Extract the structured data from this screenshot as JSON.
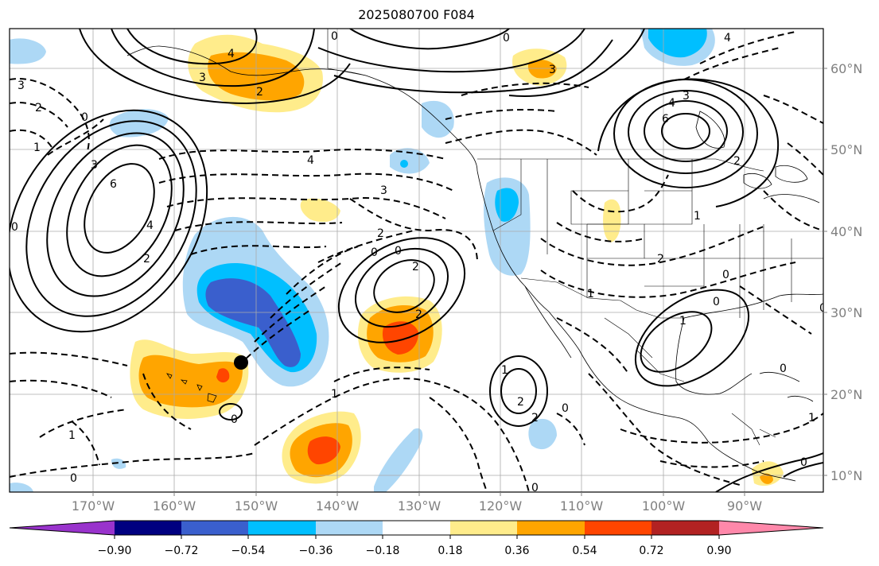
{
  "title": "2025080700 F084",
  "map": {
    "lon_ticks": [
      "170°W",
      "160°W",
      "150°W",
      "140°W",
      "130°W",
      "120°W",
      "110°W",
      "100°W",
      "90°W"
    ],
    "lat_ticks": [
      "60°N",
      "50°N",
      "40°N",
      "30°N",
      "20°N",
      "10°N"
    ],
    "marker": "black-dot"
  },
  "colorbar": {
    "labels": [
      "−0.90",
      "−0.72",
      "−0.54",
      "−0.36",
      "−0.18",
      "0.18",
      "0.36",
      "0.54",
      "0.72",
      "0.90"
    ],
    "colors": [
      "#9933cc",
      "#000080",
      "#3a5fcd",
      "#00bfff",
      "#add8f5",
      "#ffffff",
      "#ffec8b",
      "#ffa500",
      "#ff4500",
      "#b22222",
      "#ff88aa"
    ]
  },
  "contour_labels": [
    "0",
    "4",
    "3",
    "2",
    "3",
    "0",
    "4",
    "6",
    "4",
    "3",
    "2",
    "3",
    "2",
    "1",
    "0",
    "3",
    "6",
    "4",
    "2",
    "0",
    "4",
    "3",
    "0",
    "2",
    "0",
    "2",
    "1",
    "2",
    "1",
    "0",
    "0",
    "1",
    "2",
    "0",
    "0",
    "1",
    "2",
    "1",
    "0",
    "2",
    "1",
    "0",
    "0",
    "0",
    "1",
    "0"
  ]
}
